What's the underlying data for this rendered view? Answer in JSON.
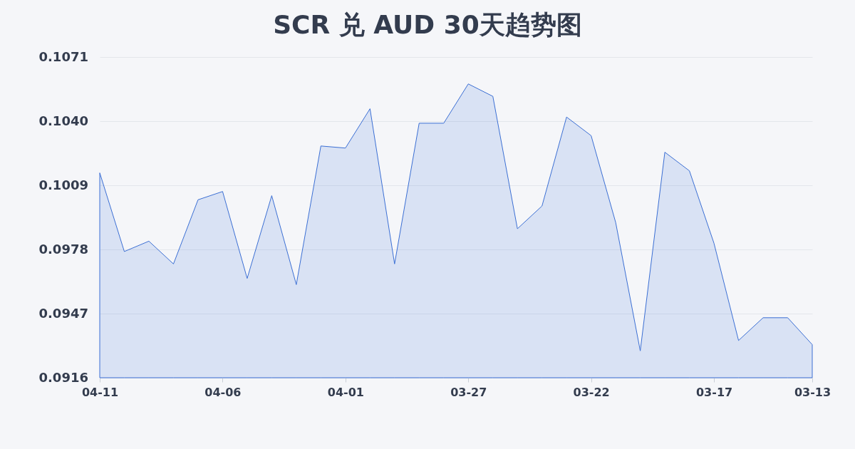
{
  "chart_data": {
    "type": "area",
    "title": "SCR 兑 AUD 30天趋势图",
    "categories": [
      "04-11",
      null,
      null,
      null,
      null,
      "04-06",
      null,
      null,
      null,
      null,
      "04-01",
      null,
      null,
      null,
      null,
      "03-27",
      null,
      null,
      null,
      null,
      "03-22",
      null,
      null,
      null,
      null,
      "03-17",
      null,
      null,
      null,
      "03-13"
    ],
    "values": [
      0.1015,
      0.0977,
      0.0982,
      0.0971,
      0.1002,
      0.1006,
      0.0964,
      0.1004,
      0.0961,
      0.1028,
      0.1027,
      0.1046,
      0.0971,
      0.1039,
      0.1039,
      0.1058,
      0.1052,
      0.0988,
      0.0999,
      0.1042,
      0.1033,
      0.0991,
      0.0929,
      0.1025,
      0.1016,
      0.0981,
      0.0934,
      0.0945,
      0.0945,
      0.0932
    ],
    "color": "#3b6fd4",
    "ylim": [
      0.0916,
      0.1071
    ],
    "yticks": [
      0.0916,
      0.0947,
      0.0978,
      0.1009,
      {
        "value": 0.104,
        "label": "0.1040"
      },
      0.1071
    ],
    "grid": "y"
  }
}
